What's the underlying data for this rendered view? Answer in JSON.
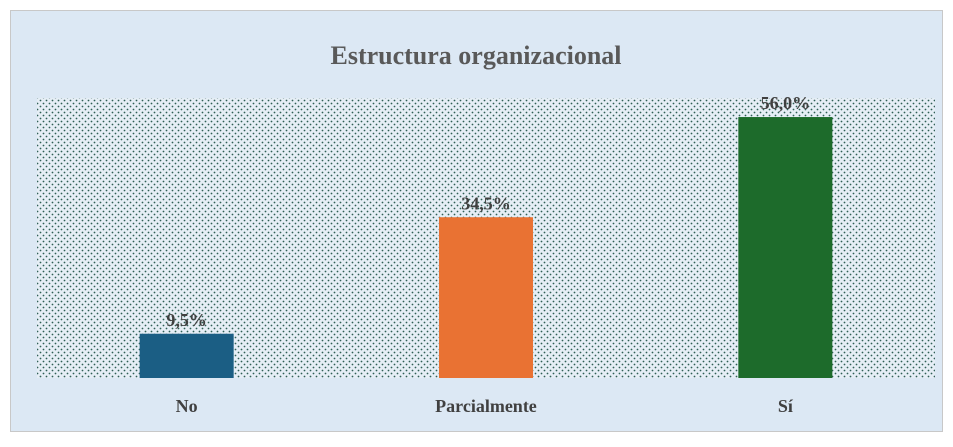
{
  "chart_data": {
    "type": "bar",
    "title": "Estructura organizacional",
    "categories": [
      "No",
      "Parcialmente",
      "Sí"
    ],
    "values": [
      9.5,
      34.5,
      56.0
    ],
    "value_labels": [
      "9,5%",
      "34,5%",
      "56,0%"
    ],
    "colors": [
      "#1b5e84",
      "#e97233",
      "#1d6b2b"
    ]
  }
}
